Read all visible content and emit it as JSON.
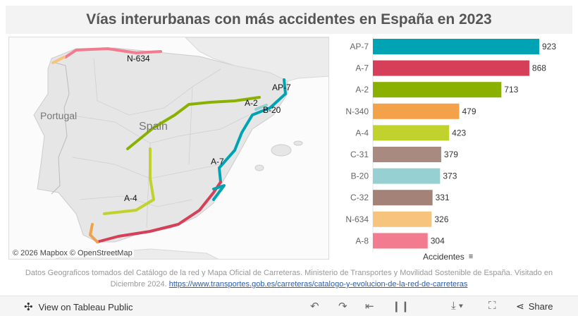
{
  "title": "Vías interurbanas con más accidentes en España en 2023",
  "map": {
    "labels": {
      "portugal": "Portugal",
      "spain": "Spain",
      "n634": "N-634",
      "ap7": "AP-7",
      "a2": "A-2",
      "b20": "B-20",
      "a7": "A-7",
      "a4": "A-4"
    },
    "credit": "© 2026 Mapbox © OpenStreetMap"
  },
  "chart_data": {
    "type": "bar",
    "orientation": "horizontal",
    "categories": [
      "AP-7",
      "A-7",
      "A-2",
      "N-340",
      "A-4",
      "C-31",
      "B-20",
      "C-32",
      "N-634",
      "A-8"
    ],
    "values": [
      923,
      868,
      713,
      479,
      423,
      379,
      373,
      331,
      326,
      304
    ],
    "colors": [
      "#00a3b4",
      "#d63f58",
      "#8ab100",
      "#f4a24a",
      "#c2d22d",
      "#a98a80",
      "#97d0d2",
      "#a58278",
      "#f7c47e",
      "#f27b90"
    ],
    "xlabel": "Accidentes",
    "xlim": [
      0,
      1000
    ]
  },
  "source": {
    "text": "Datos Geograficos tomados del Catálogo de la red y Mapa Oficial de Carreteras. Ministerio de Transportes y Movilidad Sostenible de España. Visitado en Diciembre 2024.",
    "link": "https://www.transportes.gob.es/carreteras/catalogo-y-evolucion-de-la-red-de-carreteras"
  },
  "footer": {
    "view_label": "View on Tableau Public",
    "share_label": "Share"
  }
}
